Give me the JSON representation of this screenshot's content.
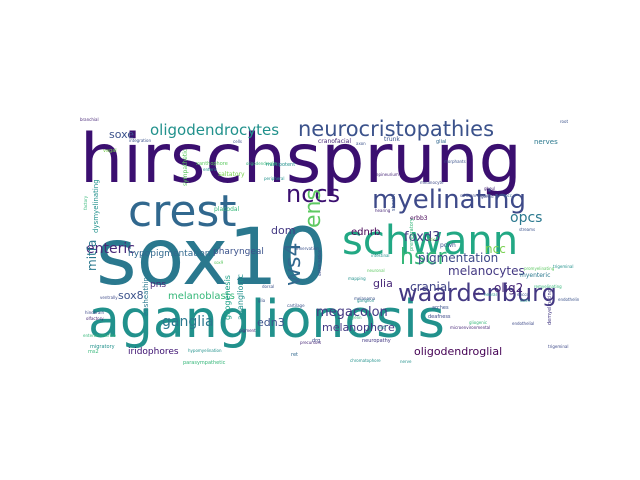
{
  "words": [
    {
      "text": "hirschsprung",
      "color": "#3b0f70",
      "weight": 100
    },
    {
      "text": "sox10",
      "color": "#2a788e",
      "weight": 96
    },
    {
      "text": "aganglionosis",
      "color": "#21918c",
      "weight": 90
    },
    {
      "text": "schwann",
      "color": "#22a884",
      "weight": 60
    },
    {
      "text": "crest",
      "color": "#31688e",
      "weight": 52
    },
    {
      "text": "neurocristopathies",
      "color": "#3b528b",
      "weight": 34
    },
    {
      "text": "waardenburg",
      "color": "#443983",
      "weight": 30
    },
    {
      "text": "myelinating",
      "color": "#3e4a89",
      "weight": 30
    },
    {
      "text": "nccs",
      "color": "#3b0f70",
      "weight": 26
    },
    {
      "text": "ens",
      "color": "#5ec962",
      "weight": 26
    },
    {
      "text": "hscr",
      "color": "#35b779",
      "weight": 24
    },
    {
      "text": "ws4",
      "color": "#31688e",
      "weight": 24
    },
    {
      "text": "oligodendrocytes",
      "color": "#21918c",
      "weight": 18
    },
    {
      "text": "melanoblasts",
      "color": "#35b779",
      "weight": 14
    },
    {
      "text": "sox8",
      "color": "#3b528b",
      "weight": 14
    },
    {
      "text": "megacolon",
      "color": "#443983",
      "weight": 14
    },
    {
      "text": "ganglia",
      "color": "#2a788e",
      "weight": 14
    },
    {
      "text": "melanocytes",
      "color": "#443983",
      "weight": 14
    },
    {
      "text": "pigmentation",
      "color": "#3e4a89",
      "weight": 14
    },
    {
      "text": "enteric",
      "color": "#482878",
      "weight": 14
    },
    {
      "text": "ncc",
      "color": "#7ad151",
      "weight": 14
    },
    {
      "text": "opcs",
      "color": "#2a788e",
      "weight": 14
    },
    {
      "text": "foxd3",
      "color": "#443983",
      "weight": 14
    },
    {
      "text": "glia",
      "color": "#482878",
      "weight": 12
    },
    {
      "text": "cranial",
      "color": "#414487",
      "weight": 12
    },
    {
      "text": "olig2",
      "color": "#482878",
      "weight": 12
    },
    {
      "text": "edn3",
      "color": "#3b528b",
      "weight": 12
    },
    {
      "text": "mitfa",
      "color": "#2a788e",
      "weight": 12
    },
    {
      "text": "soxe",
      "color": "#3b528b",
      "weight": 12
    },
    {
      "text": "dom",
      "color": "#443983",
      "weight": 12
    },
    {
      "text": "ednrb",
      "color": "#440154",
      "weight": 10
    },
    {
      "text": "hypopigmentation",
      "color": "#31688e",
      "weight": 10
    },
    {
      "text": "pharyngeal",
      "color": "#3b528b",
      "weight": 10
    },
    {
      "text": "melanophore",
      "color": "#443983",
      "weight": 10
    },
    {
      "text": "oligodendroglial",
      "color": "#440154",
      "weight": 10
    },
    {
      "text": "iridophores",
      "color": "#3b0f70",
      "weight": 10
    },
    {
      "text": "pns",
      "color": "#482878",
      "weight": 9
    },
    {
      "text": "aganglionic",
      "color": "#21918c",
      "weight": 8
    },
    {
      "text": "gliogenesis",
      "color": "#1fa187",
      "weight": 8
    },
    {
      "text": "ensheathing",
      "color": "#2a788e",
      "weight": 8
    },
    {
      "text": "dysmyelinating",
      "color": "#21918c",
      "weight": 7
    },
    {
      "text": "sympathetic",
      "color": "#5ec962",
      "weight": 7
    },
    {
      "text": "saltatory",
      "color": "#7ad151",
      "weight": 7
    },
    {
      "text": "placodal",
      "color": "#35b779",
      "weight": 7
    },
    {
      "text": "cranofacial",
      "color": "#482878",
      "weight": 6
    },
    {
      "text": "trunk",
      "color": "#3b528b",
      "weight": 6
    },
    {
      "text": "nerves",
      "color": "#2a788e",
      "weight": 6
    },
    {
      "text": "myenteric",
      "color": "#2a788e",
      "weight": 6
    },
    {
      "text": "glial",
      "color": "#31688e",
      "weight": 6
    },
    {
      "text": "sheath",
      "color": "#3b528b",
      "weight": 6
    },
    {
      "text": "erbb3",
      "color": "#440154",
      "weight": 6
    },
    {
      "text": "pcwh",
      "color": "#3b528b",
      "weight": 6
    },
    {
      "text": "premigratory",
      "color": "#35b779",
      "weight": 6
    },
    {
      "text": "xanthophore",
      "color": "#5ec962",
      "weight": 5
    },
    {
      "text": "multipotent",
      "color": "#21918c",
      "weight": 5
    },
    {
      "text": "deafness",
      "color": "#3e4a89",
      "weight": 5
    },
    {
      "text": "arches",
      "color": "#3b528b",
      "weight": 5
    },
    {
      "text": "drg",
      "color": "#3e4a89",
      "weight": 5
    },
    {
      "text": "ret",
      "color": "#31688e",
      "weight": 5
    },
    {
      "text": "neuropathy",
      "color": "#443983",
      "weight": 5
    },
    {
      "text": "vagal",
      "color": "#7ad151",
      "weight": 5
    },
    {
      "text": "migratory",
      "color": "#21918c",
      "weight": 5
    },
    {
      "text": "parasympathetic",
      "color": "#35b779",
      "weight": 5
    },
    {
      "text": "hypomyelination",
      "color": "#21918c",
      "weight": 4
    },
    {
      "text": "enteroendocrine",
      "color": "#35b779",
      "weight": 4
    },
    {
      "text": "ms2",
      "color": "#35b779",
      "weight": 4
    },
    {
      "text": "olfactory",
      "color": "#482878",
      "weight": 4
    },
    {
      "text": "hindbrain",
      "color": "#3e4a89",
      "weight": 4
    },
    {
      "text": "ventrally",
      "color": "#3e4a89",
      "weight": 4
    },
    {
      "text": "branchial",
      "color": "#482878",
      "weight": 4
    },
    {
      "text": "factory",
      "color": "#35b779",
      "weight": 4
    },
    {
      "text": "integration",
      "color": "#3b528b",
      "weight": 4
    },
    {
      "text": "cells",
      "color": "#3b528b",
      "weight": 4
    },
    {
      "text": "neural",
      "color": "#21918c",
      "weight": 4
    },
    {
      "text": "streams",
      "color": "#3b528b",
      "weight": 4
    },
    {
      "text": "gut",
      "color": "#482878",
      "weight": 4
    },
    {
      "text": "mitf",
      "color": "#21918c",
      "weight": 4
    },
    {
      "text": "cartilage",
      "color": "#3b528b",
      "weight": 4
    },
    {
      "text": "dorsal",
      "color": "#3b528b",
      "weight": 4
    },
    {
      "text": "ganglion",
      "color": "#21918c",
      "weight": 4
    },
    {
      "text": "remyelinating",
      "color": "#35b779",
      "weight": 4
    },
    {
      "text": "neuronal",
      "color": "#5ec962",
      "weight": 4
    },
    {
      "text": "myelin",
      "color": "#35b779",
      "weight": 4
    },
    {
      "text": "glia",
      "color": "#3b528b",
      "weight": 4
    },
    {
      "text": "pigment",
      "color": "#482878",
      "weight": 4
    },
    {
      "text": "endothelin",
      "color": "#3b528b",
      "weight": 4
    },
    {
      "text": "melanoma",
      "color": "#3b528b",
      "weight": 4
    },
    {
      "text": "morphants",
      "color": "#3b528b",
      "weight": 3
    },
    {
      "text": "enteric",
      "color": "#21918c",
      "weight": 3
    },
    {
      "text": "oligodendroglia",
      "color": "#35b779",
      "weight": 3
    },
    {
      "text": "schwannomas",
      "color": "#3e4a89",
      "weight": 3
    },
    {
      "text": "promyelinating",
      "color": "#5ec962",
      "weight": 3
    },
    {
      "text": "demyelinating",
      "color": "#443983",
      "weight": 3
    },
    {
      "text": "trigeminal",
      "color": "#3e4a89",
      "weight": 3
    },
    {
      "text": "epineurium",
      "color": "#482878",
      "weight": 3
    },
    {
      "text": "peripheral",
      "color": "#21918c",
      "weight": 3
    },
    {
      "text": "melanocyte",
      "color": "#3e4a89",
      "weight": 3
    },
    {
      "text": "intestinal",
      "color": "#21918c",
      "weight": 3
    },
    {
      "text": "hearing",
      "color": "#482878",
      "weight": 3
    },
    {
      "text": "innervation",
      "color": "#3b528b",
      "weight": 3
    },
    {
      "text": "chromatophore",
      "color": "#21918c",
      "weight": 3
    },
    {
      "text": "precursors",
      "color": "#482878",
      "weight": 3
    },
    {
      "text": "nerve",
      "color": "#21918c",
      "weight": 3
    },
    {
      "text": "delamination",
      "color": "#3e4a89",
      "weight": 3
    },
    {
      "text": "sox9",
      "color": "#5ec962",
      "weight": 3
    },
    {
      "text": "otic",
      "color": "#7ad151",
      "weight": 3
    },
    {
      "text": "root",
      "color": "#3b528b",
      "weight": 3
    },
    {
      "text": "mapping",
      "color": "#21918c",
      "weight": 3
    },
    {
      "text": "gonad",
      "color": "#3e4a89",
      "weight": 3
    },
    {
      "text": "ncc",
      "color": "#31688e",
      "weight": 3
    },
    {
      "text": "enccs",
      "color": "#3b528b",
      "weight": 3
    },
    {
      "text": "gliogenic",
      "color": "#35b779",
      "weight": 3
    },
    {
      "text": "microenvironmental",
      "color": "#482878",
      "weight": 3
    },
    {
      "text": "endothelial",
      "color": "#3e4a89",
      "weight": 3
    },
    {
      "text": "ghoul",
      "color": "#482878",
      "weight": 3
    },
    {
      "text": "trigeminal",
      "color": "#21918c",
      "weight": 3
    },
    {
      "text": "axon",
      "color": "#3b528b",
      "weight": 3
    },
    {
      "text": "stem",
      "color": "#21918c",
      "weight": 3
    }
  ]
}
